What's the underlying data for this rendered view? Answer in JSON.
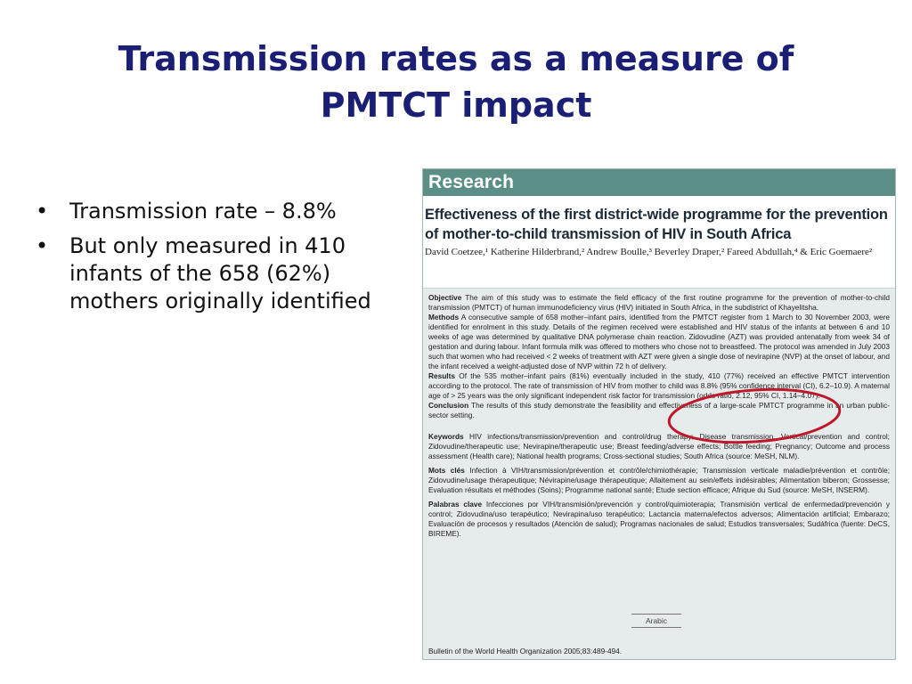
{
  "title": "Transmission rates as a measure of PMTCT impact",
  "bullets": [
    "Transmission rate – 8.8%",
    "But only measured in 410 infants of the 658 (62%) mothers originally identified"
  ],
  "bullet_glyph": "•",
  "article": {
    "banner": "Research",
    "title": "Effectiveness of the first district-wide programme for the prevention of mother-to-child transmission of HIV in South Africa",
    "authors": "David Coetzee,¹ Katherine Hilderbrand,² Andrew Boulle,³ Beverley Draper,² Fareed Abdullah,⁴ & Eric Goemaere²",
    "abstract": {
      "objective_label": "Objective",
      "objective": "The aim of this study was to estimate the field efficacy of the first routine programme for the prevention of mother-to-child transmission (PMTCT) of human immunodeficiency virus (HIV) initiated in South Africa, in the subdistrict of Khayelitsha.",
      "methods_label": "Methods",
      "methods": "A consecutive sample of 658 mother–infant pairs, identified from the PMTCT register from 1 March to 30 November 2003, were identified for enrolment in this study. Details of the regimen received were established and HIV status of the infants at between 6 and 10 weeks of age was determined by qualitative DNA polymerase chain reaction. Zidovudine (AZT) was provided antenatally from week 34 of gestation and during labour. Infant formula milk was offered to mothers who chose not to breastfeed. The protocol was amended in July 2003 such that women who had received < 2 weeks of treatment with AZT were given a single dose of nevirapine (NVP) at the onset of labour, and the infant received a weight-adjusted dose of NVP within 72 h of delivery.",
      "results_label": "Results",
      "results": "Of the 535 mother–infant pairs (81%) eventually included in the study, 410 (77%) received an effective PMTCT intervention according to the protocol. The rate of transmission of HIV from mother to child was 8.8% (95% confidence interval (CI), 6.2–10.9). A maternal age of > 25 years was the only significant independent risk factor for transmission (odds ratio, 2.12, 95% CI, 1.14–4.07).",
      "conclusion_label": "Conclusion",
      "conclusion": "The results of this study demonstrate the feasibility and effectiveness of a large-scale PMTCT programme in an urban public-sector setting.",
      "keywords_label": "Keywords",
      "keywords": "HIV infections/transmission/prevention and control/drug therapy; Disease transmission, Vertical/prevention and control; Zidovudine/therapeutic use; Nevirapine/therapeutic use; Breast feeding/adverse effects; Bottle feeding; Pregnancy; Outcome and process assessment (Health care); National health programs; Cross-sectional studies; South Africa (source: MeSH, NLM).",
      "motscles_label": "Mots clés",
      "motscles": "Infection à VIH/transmission/prévention et contrôle/chimiothérapie; Transmission verticale maladie/prévention et contrôle; Zidovudine/usage thérapeutique; Névirapine/usage thérapeutique; Allaitement au sein/effets indésirables; Alimentation biberon; Grossesse; Evaluation résultats et méthodes (Soins); Programme national santé; Etude section efficace; Afrique du Sud (source: MeSH, INSERM).",
      "palabras_label": "Palabras clave",
      "palabras": "Infecciones por VIH/transmisión/prevención y control/quimioterapia; Transmisión vertical de enfermedad/prevención y control; Zidovudina/uso terapéutico; Nevirapina/uso terapéutico; Lactancia materna/efectos adversos; Alimentación artificial; Embarazo; Evaluación de procesos y resultados (Atención de salud); Programas nacionales de salud; Estudios transversales; Sudáfrica (fuente: DeCS, BIREME)."
    },
    "arabic_label": "Arabic",
    "citation": "Bulletin of the World Health Organization 2005;83:489-494."
  },
  "colors": {
    "title": "#1a1f75",
    "banner": "#5b8f86",
    "abstract_bg": "#e6ecec",
    "highlight": "#c0182a"
  }
}
